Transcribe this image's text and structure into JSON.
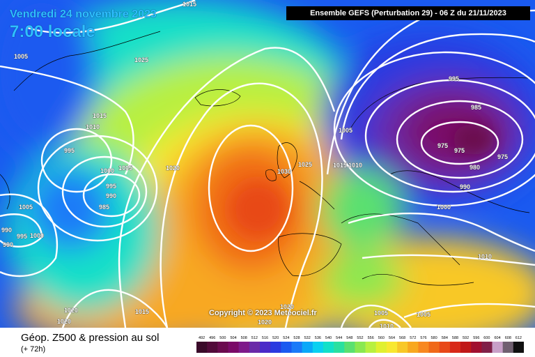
{
  "header": {
    "date": "Vendredi 24 novembre 2023",
    "time": "7:00 locale",
    "run_info": "Ensemble GEFS  (Perturbation 29)  -  06 Z du 21/11/2023"
  },
  "copyright": "Copyright © 2023 Meteociel.fr",
  "legend": {
    "title": "Géop. Z500 & pression au sol",
    "lead": "(+ 72h)",
    "scale_values": [
      "492",
      "496",
      "500",
      "504",
      "508",
      "512",
      "516",
      "520",
      "524",
      "528",
      "532",
      "536",
      "540",
      "544",
      "548",
      "552",
      "556",
      "560",
      "564",
      "568",
      "572",
      "576",
      "580",
      "584",
      "588",
      "592",
      "596",
      "600",
      "604",
      "608",
      "612"
    ],
    "scale_colors": [
      "#3a0a2a",
      "#520a3a",
      "#6a0a4e",
      "#7a0a68",
      "#7e1a8a",
      "#6a2aa8",
      "#4a2ac8",
      "#2a3ae0",
      "#1a5af0",
      "#1a7af8",
      "#0aa8f8",
      "#0ad0f0",
      "#12e0c8",
      "#2ae0a0",
      "#5ae070",
      "#8ae850",
      "#b8f040",
      "#e0f030",
      "#f8e830",
      "#f8c828",
      "#f8a820",
      "#f88820",
      "#f06818",
      "#e84818",
      "#d82818",
      "#c01818",
      "#a01030",
      "#802048",
      "#c8a0c8",
      "#706070",
      "#101010"
    ]
  },
  "isobars": [
    {
      "text": "1015"
    },
    {
      "text": "1005"
    },
    {
      "text": "1025"
    },
    {
      "text": "1015"
    },
    {
      "text": "1010"
    },
    {
      "text": "995"
    },
    {
      "text": "1000"
    },
    {
      "text": "1005"
    },
    {
      "text": "995"
    },
    {
      "text": "990"
    },
    {
      "text": "985"
    },
    {
      "text": "1020"
    },
    {
      "text": "1005"
    },
    {
      "text": "990"
    },
    {
      "text": "995"
    },
    {
      "text": "1000"
    },
    {
      "text": "990"
    },
    {
      "text": "1030"
    },
    {
      "text": "1025"
    },
    {
      "text": "1015"
    },
    {
      "text": "1010"
    },
    {
      "text": "1005"
    },
    {
      "text": "995"
    },
    {
      "text": "985"
    },
    {
      "text": "975"
    },
    {
      "text": "975"
    },
    {
      "text": "975"
    },
    {
      "text": "980"
    },
    {
      "text": "990"
    },
    {
      "text": "1000"
    },
    {
      "text": "1010"
    },
    {
      "text": "1020"
    },
    {
      "text": "1020"
    },
    {
      "text": "1015"
    },
    {
      "text": "1020"
    },
    {
      "text": "1020"
    },
    {
      "text": "1005"
    },
    {
      "text": "1005"
    },
    {
      "text": "1010"
    }
  ]
}
